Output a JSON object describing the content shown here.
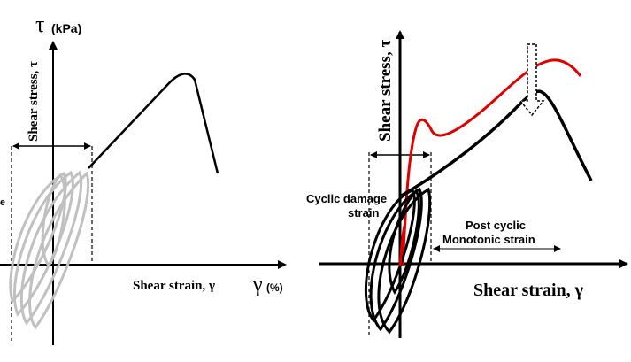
{
  "left_panel": {
    "y_axis_symbol": "τ",
    "y_axis_unit": "(kPa)",
    "y_axis_label": "Shear stress, τ",
    "x_axis_label": "Shear strain, γ",
    "x_axis_symbol": "γ",
    "x_axis_unit": "(%)",
    "edge_fragment": "e"
  },
  "right_panel": {
    "y_axis_label": "Shear stress, τ",
    "x_axis_label": "Shear strain, γ",
    "cyclic_label_line1": "Cyclic damage",
    "cyclic_label_line2": "strain",
    "post_label_line1": "Post cyclic",
    "post_label_line2": "Monotonic strain"
  },
  "colors": {
    "axis": "#000000",
    "monotonic_curve": "#000000",
    "cyclic_loops_left": "#c0c0c0",
    "cyclic_loops_right": "#000000",
    "post_cyclic_curve": "#e00000"
  }
}
